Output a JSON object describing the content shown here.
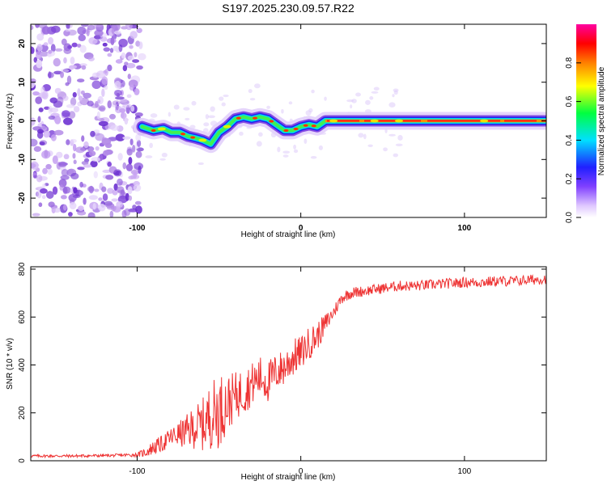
{
  "title": "S197.2025.230.09.57.R22",
  "chart_data": [
    {
      "type": "heatmap",
      "title": "S197.2025.230.09.57.R22",
      "xlabel": "Height of straight line (km)",
      "ylabel": "Frequency (Hz)",
      "xlim": [
        -165,
        150
      ],
      "ylim": [
        -25,
        25
      ],
      "xticks": [
        -100,
        0,
        100
      ],
      "xtick_labels": [
        "-100",
        "0",
        "100"
      ],
      "yticks": [
        -20,
        -10,
        0,
        10,
        20
      ],
      "ytick_labels": [
        "-20",
        "-10",
        "0",
        "10",
        "20"
      ],
      "noise_region_x": [
        -165,
        -97
      ],
      "ridge": {
        "x": [
          -97,
          -90,
          -84,
          -79,
          -74,
          -69,
          -64,
          -60,
          -55,
          -50,
          -45,
          -40,
          -35,
          -30,
          -25,
          -20,
          -15,
          -10,
          -5,
          0,
          5,
          10,
          15,
          30,
          60,
          100,
          150
        ],
        "y": [
          -1.5,
          -2.5,
          -2,
          -3,
          -3,
          -4,
          -4.5,
          -5,
          -6,
          -3,
          -1.5,
          0.5,
          1,
          0.5,
          1,
          0.5,
          -1,
          -2.5,
          -2.5,
          -1.5,
          -1,
          -1.5,
          0,
          0,
          0,
          0,
          0
        ]
      },
      "colorbar": {
        "label": "Normalized spectral amplitude",
        "range": [
          0,
          1
        ],
        "ticks": [
          0.0,
          0.2,
          0.4,
          0.6,
          0.8
        ],
        "tick_labels": [
          "0.0",
          "0.2",
          "0.4",
          "0.6",
          "0.8"
        ],
        "colors": [
          "#ffffff",
          "#e0c8ff",
          "#8040ff",
          "#2020ff",
          "#00e0ff",
          "#00ff40",
          "#ffff00",
          "#ff8000",
          "#ff0000",
          "#ff00a0"
        ]
      }
    },
    {
      "type": "line",
      "xlabel": "Height of straight line (km)",
      "ylabel": "SNR (10 * v/v)",
      "xlim": [
        -165,
        150
      ],
      "ylim": [
        0,
        810
      ],
      "xticks": [
        -100,
        0,
        100
      ],
      "xtick_labels": [
        "-100",
        "0",
        "100"
      ],
      "yticks": [
        0,
        200,
        400,
        600,
        800
      ],
      "ytick_labels": [
        "0",
        "200",
        "400",
        "600",
        "800"
      ],
      "series": [
        {
          "name": "SNR",
          "color": "#ee3333",
          "x": [
            -165,
            -140,
            -115,
            -100,
            -95,
            -90,
            -85,
            -80,
            -75,
            -70,
            -65,
            -60,
            -55,
            -50,
            -45,
            -40,
            -35,
            -30,
            -25,
            -20,
            -15,
            -10,
            -5,
            0,
            5,
            10,
            15,
            20,
            25,
            30,
            40,
            50,
            60,
            70,
            80,
            90,
            100,
            110,
            120,
            130,
            140,
            150
          ],
          "y": [
            20,
            20,
            22,
            25,
            35,
            55,
            70,
            95,
            110,
            120,
            140,
            150,
            190,
            210,
            240,
            270,
            290,
            320,
            350,
            330,
            370,
            390,
            430,
            450,
            490,
            520,
            570,
            620,
            680,
            700,
            710,
            720,
            730,
            730,
            735,
            740,
            745,
            745,
            750,
            750,
            755,
            760
          ],
          "noise": [
            6,
            6,
            6,
            8,
            20,
            30,
            35,
            40,
            50,
            70,
            90,
            110,
            140,
            160,
            120,
            100,
            100,
            90,
            90,
            90,
            80,
            80,
            80,
            70,
            70,
            60,
            45,
            30,
            25,
            25,
            22,
            22,
            22,
            22,
            22,
            22,
            22,
            22,
            22,
            22,
            22,
            22
          ]
        }
      ]
    }
  ]
}
